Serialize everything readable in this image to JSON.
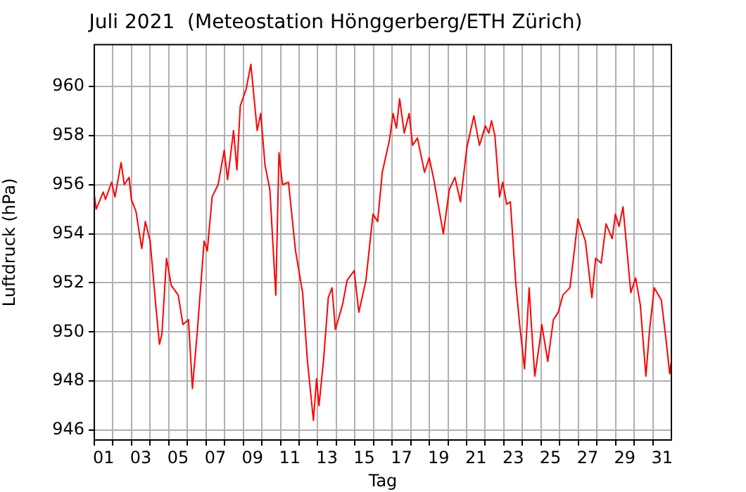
{
  "chart_data": {
    "type": "line",
    "title": "Juli 2021  (Meteostation Hönggerberg/ETH Zürich)",
    "xlabel": "Tag",
    "ylabel": "Luftdruck (hPa)",
    "x": [
      1.0,
      1.1,
      1.48,
      1.6,
      1.93,
      2.11,
      2.44,
      2.61,
      2.87,
      2.99,
      3.24,
      3.55,
      3.74,
      4.0,
      4.3,
      4.5,
      4.63,
      4.88,
      5.13,
      5.51,
      5.76,
      6.06,
      6.27,
      6.52,
      6.9,
      7.07,
      7.33,
      7.65,
      7.98,
      8.16,
      8.48,
      8.66,
      8.84,
      9.16,
      9.41,
      9.75,
      9.94,
      10.17,
      10.43,
      10.75,
      10.92,
      11.11,
      11.43,
      11.81,
      12.19,
      12.44,
      12.77,
      12.94,
      13.07,
      13.32,
      13.57,
      13.77,
      13.95,
      14.33,
      14.58,
      14.96,
      15.21,
      15.59,
      15.97,
      16.22,
      16.47,
      16.85,
      17.05,
      17.23,
      17.4,
      17.65,
      17.91,
      18.1,
      18.36,
      18.74,
      18.99,
      19.24,
      19.75,
      20.07,
      20.37,
      20.67,
      21.01,
      21.39,
      21.69,
      22.01,
      22.19,
      22.34,
      22.52,
      22.77,
      22.94,
      23.15,
      23.35,
      23.65,
      23.85,
      24.11,
      24.36,
      24.46,
      24.66,
      24.91,
      25.04,
      25.36,
      25.66,
      25.92,
      26.17,
      26.55,
      26.8,
      26.98,
      27.38,
      27.73,
      27.93,
      28.23,
      28.49,
      28.82,
      28.99,
      29.19,
      29.4,
      29.82,
      30.08,
      30.33,
      30.63,
      30.83,
      31.08,
      31.46,
      31.71,
      31.91,
      32.0
    ],
    "series": [
      {
        "color": "#ff0000",
        "values": [
          955.6,
          955.0,
          955.7,
          955.4,
          956.1,
          955.5,
          956.9,
          956.0,
          956.3,
          955.4,
          954.9,
          953.4,
          954.5,
          953.7,
          951.1,
          949.5,
          949.9,
          953.0,
          951.9,
          951.5,
          950.3,
          950.5,
          947.7,
          949.9,
          953.7,
          953.3,
          955.5,
          956.0,
          957.4,
          956.2,
          958.2,
          956.6,
          959.2,
          959.9,
          960.9,
          958.2,
          958.9,
          956.8,
          955.8,
          951.5,
          957.3,
          956.0,
          956.1,
          953.3,
          951.6,
          948.9,
          946.4,
          948.1,
          947.0,
          948.9,
          951.4,
          951.8,
          950.1,
          951.1,
          952.1,
          952.5,
          950.8,
          952.1,
          954.8,
          954.5,
          956.5,
          957.8,
          958.9,
          958.3,
          959.5,
          958.1,
          958.9,
          957.6,
          957.9,
          956.5,
          957.1,
          956.2,
          954.0,
          955.8,
          956.3,
          955.3,
          957.5,
          958.8,
          957.6,
          958.4,
          958.1,
          958.6,
          958.0,
          955.5,
          956.1,
          955.2,
          955.3,
          951.9,
          950.3,
          948.5,
          951.8,
          950.5,
          948.2,
          949.5,
          950.3,
          948.8,
          950.5,
          950.8,
          951.5,
          951.8,
          953.4,
          954.6,
          953.7,
          951.4,
          953.0,
          952.8,
          954.4,
          953.8,
          954.8,
          954.3,
          955.1,
          951.6,
          952.2,
          951.1,
          948.2,
          950.1,
          951.8,
          951.3,
          949.7,
          948.3,
          948.8
        ]
      }
    ],
    "xlim": [
      1,
      32
    ],
    "xticks": [
      {
        "value": 1,
        "label": null
      },
      {
        "value": 1.5,
        "label": "01"
      },
      {
        "value": 2,
        "label": null
      },
      {
        "value": 3,
        "label": null
      },
      {
        "value": 3.5,
        "label": "03"
      },
      {
        "value": 4,
        "label": null
      },
      {
        "value": 5,
        "label": null
      },
      {
        "value": 5.5,
        "label": "05"
      },
      {
        "value": 6,
        "label": null
      },
      {
        "value": 7,
        "label": null
      },
      {
        "value": 7.5,
        "label": "07"
      },
      {
        "value": 8,
        "label": null
      },
      {
        "value": 9,
        "label": null
      },
      {
        "value": 9.5,
        "label": "09"
      },
      {
        "value": 10,
        "label": null
      },
      {
        "value": 11,
        "label": null
      },
      {
        "value": 11.5,
        "label": "11"
      },
      {
        "value": 12,
        "label": null
      },
      {
        "value": 13,
        "label": null
      },
      {
        "value": 13.5,
        "label": "13"
      },
      {
        "value": 14,
        "label": null
      },
      {
        "value": 15,
        "label": null
      },
      {
        "value": 15.5,
        "label": "15"
      },
      {
        "value": 16,
        "label": null
      },
      {
        "value": 17,
        "label": null
      },
      {
        "value": 17.5,
        "label": "17"
      },
      {
        "value": 18,
        "label": null
      },
      {
        "value": 19,
        "label": null
      },
      {
        "value": 19.5,
        "label": "19"
      },
      {
        "value": 20,
        "label": null
      },
      {
        "value": 21,
        "label": null
      },
      {
        "value": 21.5,
        "label": "21"
      },
      {
        "value": 22,
        "label": null
      },
      {
        "value": 23,
        "label": null
      },
      {
        "value": 23.5,
        "label": "23"
      },
      {
        "value": 24,
        "label": null
      },
      {
        "value": 25,
        "label": null
      },
      {
        "value": 25.5,
        "label": "25"
      },
      {
        "value": 26,
        "label": null
      },
      {
        "value": 27,
        "label": null
      },
      {
        "value": 27.5,
        "label": "27"
      },
      {
        "value": 28,
        "label": null
      },
      {
        "value": 29,
        "label": null
      },
      {
        "value": 29.5,
        "label": "29"
      },
      {
        "value": 30,
        "label": null
      },
      {
        "value": 31,
        "label": null
      },
      {
        "value": 31.5,
        "label": "31"
      }
    ],
    "ylim": [
      945.6,
      961.7
    ],
    "yticks": [
      946,
      948,
      950,
      952,
      954,
      956,
      958,
      960
    ],
    "grid": true,
    "marker": "none",
    "line_style": "solid",
    "legend": false
  }
}
